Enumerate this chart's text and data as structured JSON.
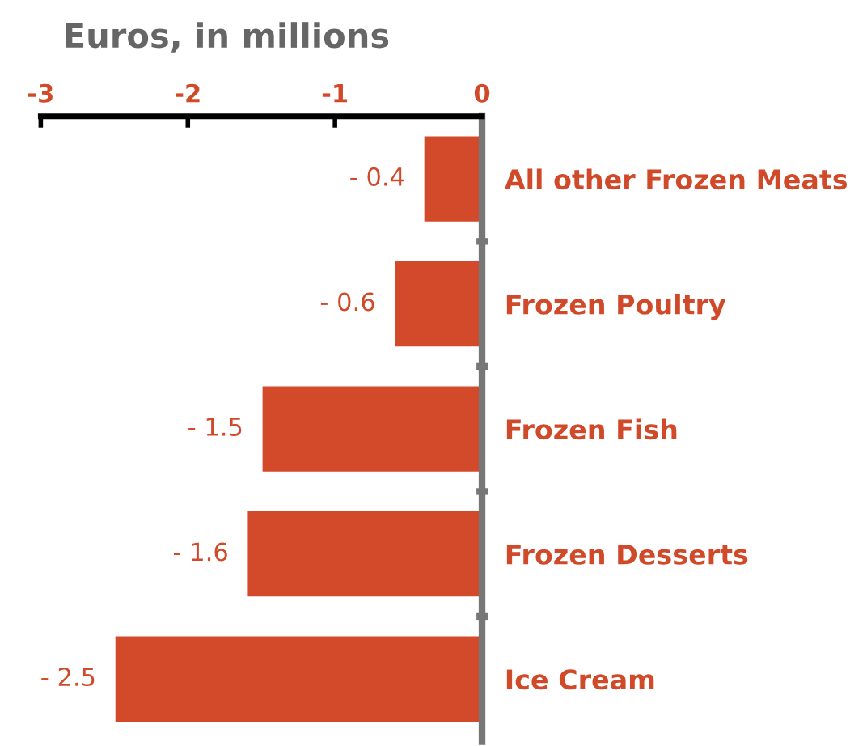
{
  "chart_data": {
    "type": "bar",
    "orientation": "horizontal",
    "xlabel": "Euros, in millions",
    "categories": [
      "All other Frozen Meats",
      "Frozen Poultry",
      "Frozen Fish",
      "Frozen Desserts",
      "Ice Cream"
    ],
    "values": [
      -0.4,
      -0.6,
      -1.5,
      -1.6,
      -2.5
    ],
    "value_labels": [
      "- 0.4",
      "- 0.6",
      "- 1.5",
      "- 1.6",
      "- 2.5"
    ],
    "color": "#d24a2a",
    "xlim": [
      -3,
      0
    ],
    "xticks": [
      -3,
      -2,
      -1,
      0
    ],
    "grid": false,
    "legend": false
  }
}
